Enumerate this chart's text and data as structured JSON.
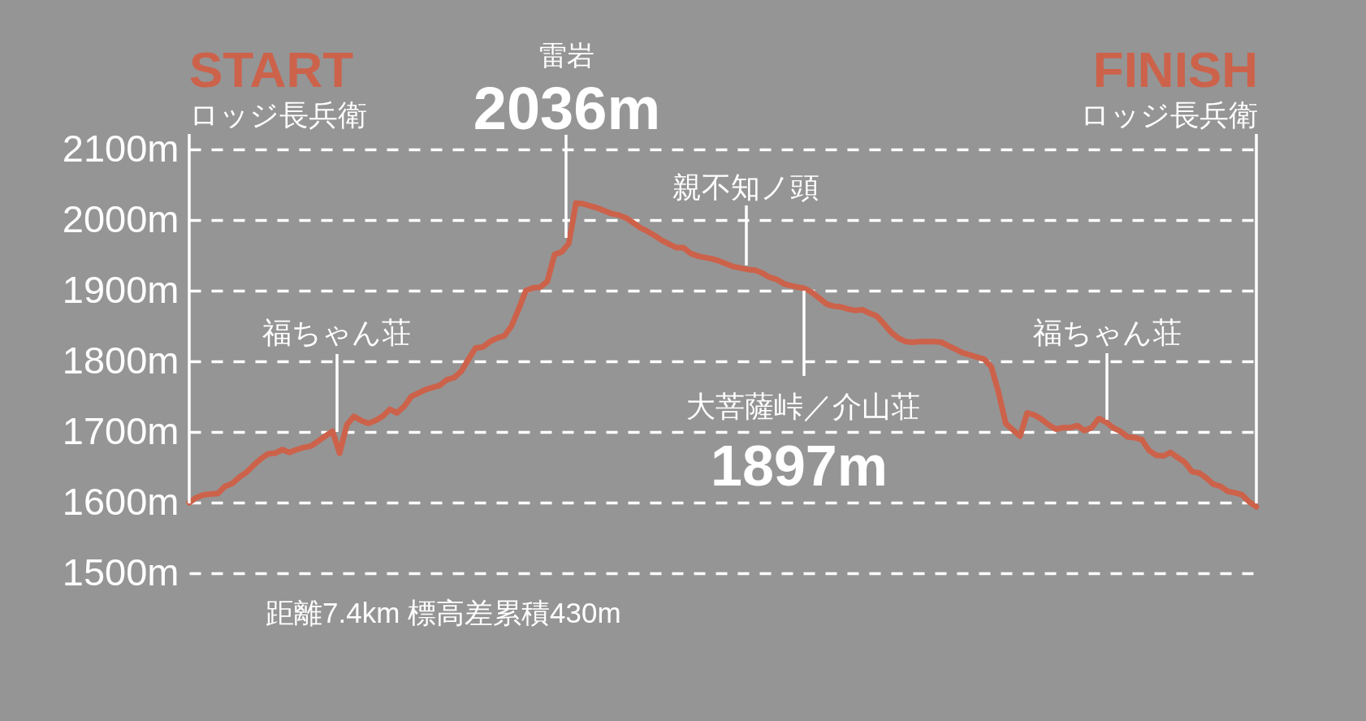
{
  "chart_data": {
    "type": "line",
    "categories": [
      null,
      null,
      null,
      null,
      null,
      null,
      null,
      null,
      null,
      null,
      null,
      null,
      null,
      null,
      null,
      null,
      null,
      null,
      null,
      null,
      null,
      null,
      null,
      null,
      null,
      null,
      null,
      null,
      null,
      null,
      null,
      null,
      null,
      null,
      null,
      null,
      null,
      null,
      null,
      null,
      null,
      null,
      null,
      null,
      null,
      null,
      null,
      null,
      null,
      null,
      null,
      null,
      null,
      null,
      null,
      null,
      null,
      null,
      null,
      null,
      null,
      null,
      null,
      null,
      null,
      null,
      null,
      null,
      null,
      null,
      null,
      null,
      null,
      null,
      null,
      null,
      null,
      null,
      null,
      null,
      null,
      null,
      null,
      null,
      null,
      null,
      null,
      null,
      null,
      null,
      null,
      null,
      null,
      null,
      null,
      null,
      null,
      null,
      null,
      null,
      null,
      null,
      null,
      null,
      null,
      null,
      null,
      null,
      null,
      null,
      null,
      null,
      null,
      null,
      null,
      null,
      null,
      null,
      null,
      null,
      null,
      null,
      null,
      null,
      null,
      null,
      null,
      null,
      null,
      null,
      null,
      null,
      null,
      null,
      null,
      null,
      null,
      null,
      null,
      null,
      null,
      null,
      null,
      null,
      null,
      null,
      null,
      null,
      null,
      null
    ],
    "series": [
      {
        "color": "#cd624b",
        "values": [
          1600,
          1607,
          1611,
          1612,
          1613,
          1623,
          1627,
          1636,
          1643,
          1653,
          1662,
          1669,
          1670,
          1675,
          1671,
          1675,
          1678,
          1680,
          1687,
          1694,
          1701,
          1670,
          1710,
          1722,
          1716,
          1712,
          1716,
          1722,
          1732,
          1727,
          1736,
          1750,
          1755,
          1760,
          1763,
          1766,
          1774,
          1777,
          1786,
          1803,
          1819,
          1820,
          1828,
          1833,
          1836,
          1850,
          1874,
          1900,
          1904,
          1905,
          1913,
          1951,
          1955,
          1967,
          2024,
          2023,
          2020,
          2017,
          2013,
          2009,
          2007,
          2003,
          1996,
          1989,
          1984,
          1978,
          1971,
          1966,
          1961,
          1961,
          1953,
          1949,
          1947,
          1945,
          1942,
          1938,
          1934,
          1932,
          1930,
          1929,
          1925,
          1919,
          1916,
          1910,
          1907,
          1905,
          1903,
          1897,
          1889,
          1881,
          1878,
          1877,
          1874,
          1872,
          1873,
          1868,
          1864,
          1853,
          1841,
          1833,
          1828,
          1827,
          1828,
          1828,
          1828,
          1827,
          1822,
          1817,
          1812,
          1809,
          1806,
          1803,
          1792,
          1756,
          1712,
          1703,
          1694,
          1727,
          1724,
          1718,
          1710,
          1704,
          1706,
          1706,
          1709,
          1702,
          1706,
          1719,
          1714,
          1706,
          1701,
          1693,
          1692,
          1689,
          1674,
          1667,
          1666,
          1671,
          1664,
          1657,
          1644,
          1642,
          1635,
          1626,
          1623,
          1616,
          1614,
          1611,
          1601,
          1594
        ]
      }
    ],
    "ylim": [
      1500,
      2100
    ],
    "yticks": [
      {
        "value": 1500,
        "label": "1500m"
      },
      {
        "value": 1600,
        "label": "1600m"
      },
      {
        "value": 1700,
        "label": "1700m"
      },
      {
        "value": 1800,
        "label": "1800m"
      },
      {
        "value": 1900,
        "label": "1900m"
      },
      {
        "value": 2000,
        "label": "2000m"
      },
      {
        "value": 2100,
        "label": "2100m"
      }
    ],
    "grid": "y",
    "tick_labels": "y",
    "line_style": "solid",
    "annotations": [
      "START",
      "ロッジ長兵衛",
      "雷岩",
      "2036m",
      "親不知ノ頭",
      "福ちゃん荘",
      "大菩薩峠／介山荘",
      "1897m",
      "福ちゃん荘",
      "FINISH",
      "ロッジ長兵衛",
      "距離7.4km 標高差累積430m"
    ]
  }
}
